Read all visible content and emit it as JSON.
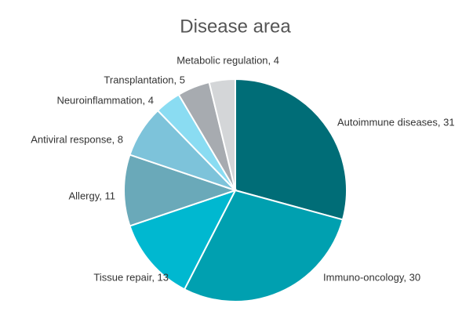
{
  "chart_data": {
    "type": "pie",
    "title": "Disease area",
    "categories": [
      "Autoimmune diseases, 31",
      "Immuno-oncology, 30",
      "Tissue repair, 13",
      "Allergy, 11",
      "Antiviral response, 8",
      "Neuroinflammation, 4",
      "Transplantation, 5",
      "Metabolic regulation, 4"
    ],
    "values": [
      31,
      30,
      13,
      11,
      8,
      4,
      5,
      4
    ],
    "colors": [
      "#006d77",
      "#00a0b0",
      "#00b8d0",
      "#6aa9b9",
      "#7dc3da",
      "#8adcf2",
      "#a7abb0",
      "#d4d6d8"
    ]
  }
}
